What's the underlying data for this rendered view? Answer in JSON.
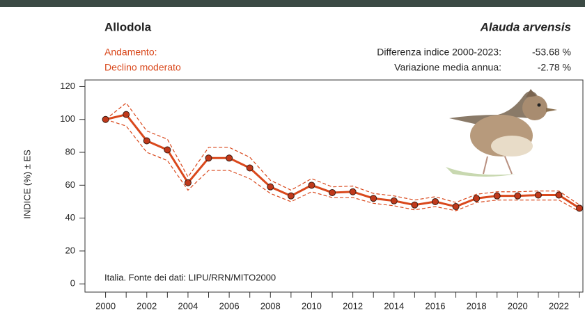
{
  "chart_data": {
    "type": "line",
    "title": "Allodola",
    "subtitle": "Alauda arvensis",
    "trend_label": "Andamento:",
    "trend_value": "Declino moderato",
    "stats": [
      {
        "label": "Differenza indice 2000-2023:",
        "value": "-53.68 %"
      },
      {
        "label": "Variazione media annua:",
        "value": "-2.78 %"
      }
    ],
    "y_label": "INDICE (%) ± ES",
    "annotation": "Italia. Fonte dei dati: LIPU/RRN/MITO2000",
    "x": [
      2000,
      2001,
      2002,
      2003,
      2004,
      2005,
      2006,
      2007,
      2008,
      2009,
      2010,
      2011,
      2012,
      2013,
      2014,
      2015,
      2016,
      2017,
      2018,
      2019,
      2020,
      2021,
      2022,
      2023
    ],
    "values": [
      100,
      103,
      87,
      81.5,
      61.5,
      76.5,
      76.5,
      70.5,
      59,
      53.5,
      60,
      55.5,
      56,
      52,
      50.5,
      48,
      50,
      47,
      52,
      53.5,
      53.5,
      54,
      54,
      46
    ],
    "error_upper": [
      100,
      110,
      93,
      88,
      65,
      83,
      83,
      77,
      63,
      57,
      64,
      59,
      59.5,
      55,
      53.5,
      51,
      53,
      49.5,
      54.5,
      56,
      56,
      56.5,
      56.5,
      48
    ],
    "error_lower": [
      100,
      96,
      80,
      75,
      57,
      69,
      69,
      64,
      55,
      50,
      56,
      52.5,
      52.5,
      49,
      47.5,
      45,
      47,
      44.5,
      49.5,
      51,
      51,
      51,
      51,
      44
    ],
    "color": "#d9481c",
    "marker_color": "#c0391b",
    "xlim": [
      1999,
      2023.2
    ],
    "ylim": [
      -5,
      124
    ],
    "xticks": [
      2000,
      2002,
      2004,
      2006,
      2008,
      2010,
      2012,
      2014,
      2016,
      2018,
      2020,
      2022
    ],
    "yticks": [
      0,
      20,
      40,
      60,
      80,
      100,
      120
    ]
  }
}
